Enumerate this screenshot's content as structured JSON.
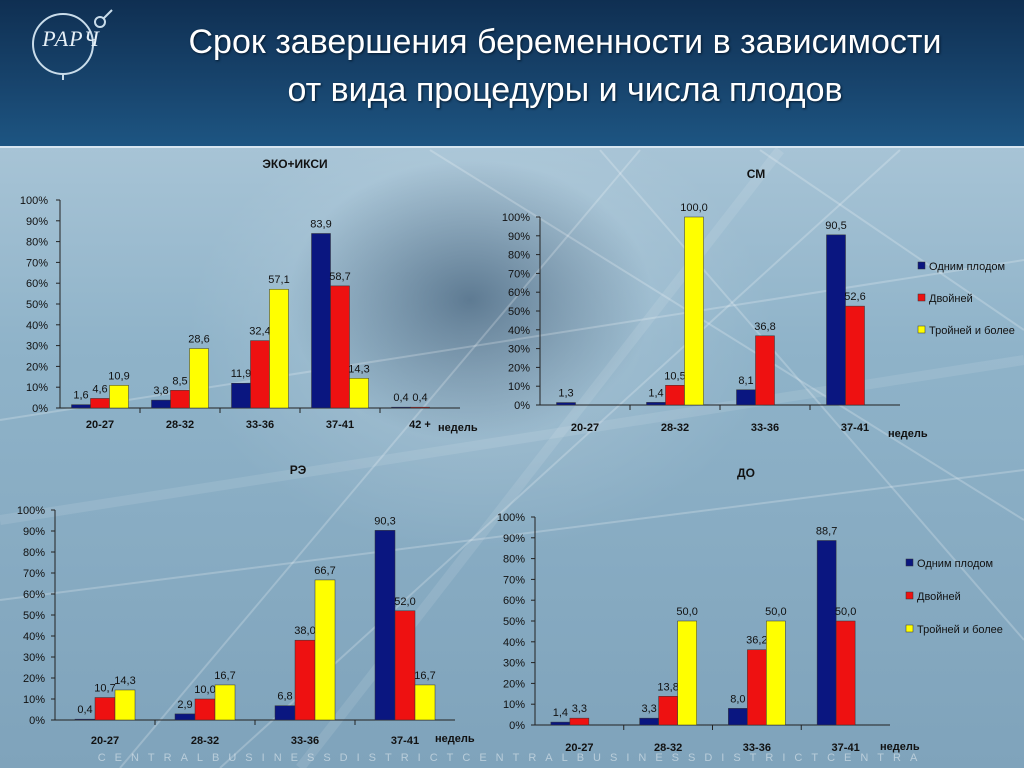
{
  "slide": {
    "logo": "РАРЧ",
    "title_line1": "Срок завершения беременности в зависимости",
    "title_line2": "от вида процедуры и числа плодов",
    "footer": "CENTRALBUSINESSDISTRICTCENTRALBUSINESSDISTRICTCENTRA"
  },
  "colors": {
    "single": "#0a1680",
    "twin": "#ee1111",
    "triple": "#ffff00"
  },
  "legend": [
    "Одним плодом",
    "Двойней",
    "Тройней и более"
  ],
  "chart_data": [
    {
      "type": "bar",
      "title": "ЭКО+ИКСИ",
      "xlabel": "недель",
      "ylim": [
        0,
        100
      ],
      "yticks": [
        "0%",
        "10%",
        "20%",
        "30%",
        "40%",
        "50%",
        "60%",
        "70%",
        "80%",
        "90%",
        "100%"
      ],
      "categories": [
        "20-27",
        "28-32",
        "33-36",
        "37-41",
        "42 +"
      ],
      "series": [
        {
          "name": "Одним плодом",
          "values": [
            1.6,
            3.8,
            11.9,
            83.9,
            0.4
          ],
          "labels": [
            "1,6",
            "3,8",
            "11,9",
            "83,9",
            "0,4"
          ]
        },
        {
          "name": "Двойней",
          "values": [
            4.6,
            8.5,
            32.4,
            58.7,
            0.4
          ],
          "labels": [
            "4,6",
            "8,5",
            "32,4",
            "58,7",
            "0,4"
          ]
        },
        {
          "name": "Тройней и более",
          "values": [
            10.9,
            28.6,
            57.1,
            14.3,
            null
          ],
          "labels": [
            "10,9",
            "28,6",
            "57,1",
            "14,3",
            ""
          ]
        }
      ]
    },
    {
      "type": "bar",
      "title": "СМ",
      "xlabel": "недель",
      "ylim": [
        0,
        100
      ],
      "yticks": [
        "0%",
        "10%",
        "20%",
        "30%",
        "40%",
        "50%",
        "60%",
        "70%",
        "80%",
        "90%",
        "100%"
      ],
      "categories": [
        "20-27",
        "28-32",
        "33-36",
        "37-41"
      ],
      "series": [
        {
          "name": "Одним плодом",
          "values": [
            1.3,
            1.4,
            8.1,
            90.5
          ],
          "labels": [
            "1,3",
            "1,4",
            "8,1",
            "90,5"
          ]
        },
        {
          "name": "Двойней",
          "values": [
            null,
            10.5,
            36.8,
            52.6
          ],
          "labels": [
            "",
            "10,5",
            "36,8",
            "52,6"
          ]
        },
        {
          "name": "Тройней и более",
          "values": [
            null,
            100.0,
            null,
            null
          ],
          "labels": [
            "",
            "100,0",
            "",
            ""
          ]
        }
      ],
      "legend": true
    },
    {
      "type": "bar",
      "title": "РЭ",
      "xlabel": "недель",
      "ylim": [
        0,
        100
      ],
      "yticks": [
        "0%",
        "10%",
        "20%",
        "30%",
        "40%",
        "50%",
        "60%",
        "70%",
        "80%",
        "90%",
        "100%"
      ],
      "categories": [
        "20-27",
        "28-32",
        "33-36",
        "37-41"
      ],
      "series": [
        {
          "name": "Одним плодом",
          "values": [
            0.4,
            2.9,
            6.8,
            90.3
          ],
          "labels": [
            "0,4",
            "2,9",
            "6,8",
            "90,3"
          ]
        },
        {
          "name": "Двойней",
          "values": [
            10.7,
            10.0,
            38.0,
            52.0
          ],
          "labels": [
            "10,7",
            "10,0",
            "38,0",
            "52,0"
          ]
        },
        {
          "name": "Тройней и более",
          "values": [
            14.3,
            16.7,
            66.7,
            16.7
          ],
          "labels": [
            "14,3",
            "16,7",
            "66,7",
            "16,7"
          ]
        }
      ]
    },
    {
      "type": "bar",
      "title": "ДО",
      "xlabel": "недель",
      "ylim": [
        0,
        100
      ],
      "yticks": [
        "0%",
        "10%",
        "20%",
        "30%",
        "40%",
        "50%",
        "60%",
        "70%",
        "80%",
        "90%",
        "100%"
      ],
      "categories": [
        "20-27",
        "28-32",
        "33-36",
        "37-41"
      ],
      "series": [
        {
          "name": "Одним плодом",
          "values": [
            1.4,
            3.3,
            8.0,
            88.7
          ],
          "labels": [
            "1,4",
            "3,3",
            "8,0",
            "88,7"
          ]
        },
        {
          "name": "Двойней",
          "values": [
            3.3,
            13.8,
            36.2,
            50.0
          ],
          "labels": [
            "3,3",
            "13,8",
            "36,2",
            "50,0"
          ]
        },
        {
          "name": "Тройней и более",
          "values": [
            null,
            50.0,
            50.0,
            null
          ],
          "labels": [
            "",
            "50,0",
            "50,0",
            ""
          ]
        }
      ],
      "legend": true
    }
  ]
}
